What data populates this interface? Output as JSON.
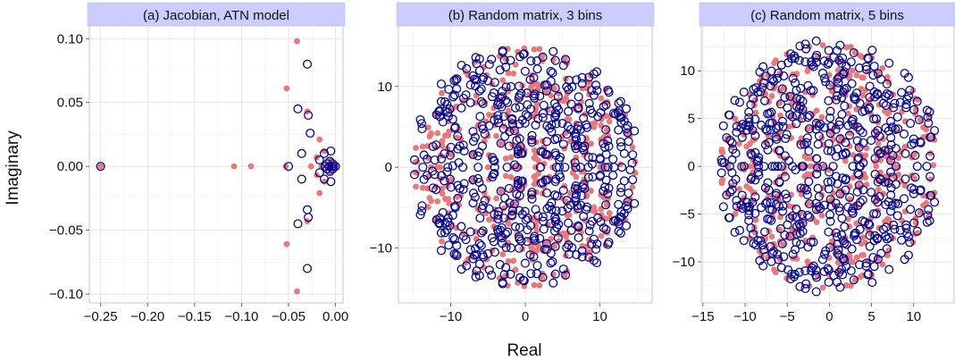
{
  "figure": {
    "ylabel": "Imaginary",
    "xlabel": "Real"
  },
  "colors": {
    "filled_series": "#e8797a",
    "open_series": "#08088a",
    "strip_fill": "#ccccff"
  },
  "chart_data": [
    {
      "type": "scatter",
      "title": "(a) Jacobian, ATN model",
      "xlim": [
        -0.262,
        0.008
      ],
      "ylim": [
        -0.107,
        0.11
      ],
      "x_ticks": [
        -0.25,
        -0.2,
        -0.15,
        -0.1,
        -0.05,
        0.0
      ],
      "x_tick_labels": [
        "−0.25",
        "−0.20",
        "−0.15",
        "−0.10",
        "−0.05",
        "0.00"
      ],
      "y_ticks": [
        -0.1,
        -0.05,
        0.0,
        0.05,
        0.1
      ],
      "y_tick_labels": [
        "−0.10",
        "−0.05",
        "0.00",
        "0.05",
        "0.10"
      ],
      "grid": true,
      "series": [
        {
          "marker": "filled",
          "points": [
            [
              -0.25,
              0
            ],
            [
              -0.108,
              0
            ],
            [
              -0.09,
              0
            ],
            [
              -0.053,
              0
            ],
            [
              -0.052,
              0.061
            ],
            [
              -0.052,
              -0.061
            ],
            [
              -0.041,
              0.098
            ],
            [
              -0.041,
              -0.098
            ],
            [
              -0.03,
              0.043
            ],
            [
              -0.03,
              -0.043
            ],
            [
              -0.026,
              0
            ],
            [
              -0.02,
              0.007
            ],
            [
              -0.02,
              -0.007
            ],
            [
              -0.017,
              0.021
            ],
            [
              -0.017,
              -0.021
            ],
            [
              -0.015,
              0
            ],
            [
              -0.012,
              0.012
            ],
            [
              -0.012,
              -0.012
            ],
            [
              -0.008,
              0
            ],
            [
              -0.005,
              0.005
            ],
            [
              -0.005,
              -0.005
            ],
            [
              -0.003,
              0
            ]
          ]
        },
        {
          "marker": "open",
          "points": [
            [
              -0.25,
              0
            ],
            [
              -0.05,
              0
            ],
            [
              -0.04,
              0.045
            ],
            [
              -0.04,
              -0.045
            ],
            [
              -0.036,
              0.01
            ],
            [
              -0.036,
              -0.01
            ],
            [
              -0.03,
              0.08
            ],
            [
              -0.03,
              -0.08
            ],
            [
              -0.029,
              0.04
            ],
            [
              -0.029,
              -0.04
            ],
            [
              -0.03,
              -0.034
            ],
            [
              -0.027,
              0.026
            ],
            [
              -0.017,
              0.005
            ],
            [
              -0.017,
              -0.005
            ],
            [
              -0.012,
              0.01
            ],
            [
              -0.012,
              -0.01
            ],
            [
              -0.011,
              0
            ],
            [
              -0.009,
              0.002
            ],
            [
              -0.009,
              -0.002
            ],
            [
              -0.007,
              0
            ],
            [
              -0.006,
              0.004
            ],
            [
              -0.006,
              -0.004
            ],
            [
              -0.005,
              0.012
            ],
            [
              -0.005,
              -0.012
            ],
            [
              -0.004,
              0
            ],
            [
              -0.003,
              0.002
            ],
            [
              -0.003,
              -0.002
            ],
            [
              -0.002,
              0
            ],
            [
              0,
              0
            ]
          ]
        }
      ]
    },
    {
      "type": "scatter",
      "title": "(b) Random matrix, 3 bins",
      "xlim": [
        -17,
        17
      ],
      "ylim": [
        -16.8,
        17.5
      ],
      "x_ticks": [
        -10,
        0,
        10
      ],
      "x_tick_labels": [
        "−10",
        "0",
        "10"
      ],
      "y_ticks": [
        -10,
        0,
        10
      ],
      "y_tick_labels": [
        "−10",
        "0",
        "10"
      ],
      "grid": true,
      "sampling": {
        "radius": 15.4,
        "filled_count": 360,
        "open_count": 560,
        "seed": 3
      }
    },
    {
      "type": "scatter",
      "title": "(c) Random matrix, 5 bins",
      "xlim": [
        -15.2,
        14.8
      ],
      "ylim": [
        -14.3,
        14.7
      ],
      "x_ticks": [
        -15,
        -10,
        -5,
        0,
        5,
        10
      ],
      "x_tick_labels": [
        "−15",
        "−10",
        "−5",
        "0",
        "5",
        "10"
      ],
      "y_ticks": [
        -10,
        -5,
        0,
        5,
        10
      ],
      "y_tick_labels": [
        "−10",
        "−5",
        "0",
        "5",
        "10"
      ],
      "grid": true,
      "sampling": {
        "radius": 13.3,
        "filled_count": 380,
        "open_count": 580,
        "seed": 5
      }
    }
  ]
}
